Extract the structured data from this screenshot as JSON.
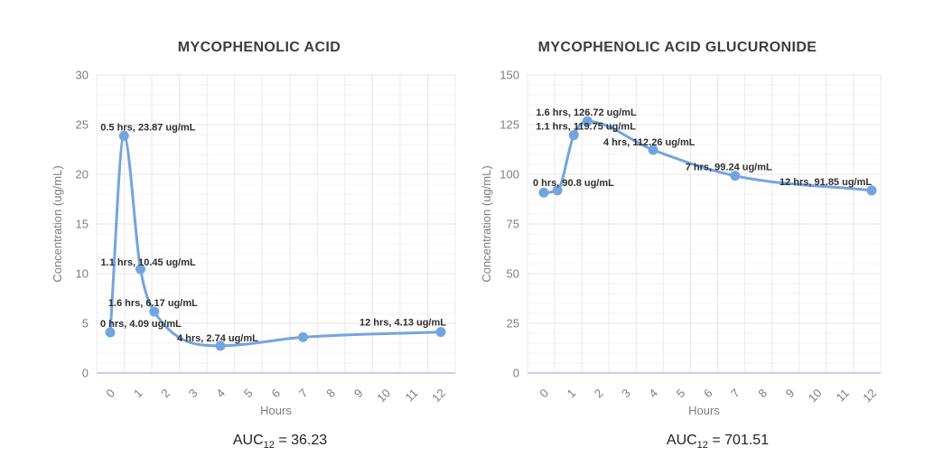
{
  "page": {
    "background": "#ffffff"
  },
  "chart_data": [
    {
      "type": "line",
      "title": "MYCOPHENOLIC ACID",
      "xlabel": "Hours",
      "ylabel": "Concentration (ug/mL)",
      "x": [
        0,
        0.5,
        1.1,
        1.6,
        4,
        7,
        12
      ],
      "y": [
        4.09,
        23.87,
        10.45,
        6.17,
        2.74,
        3.6,
        4.13
      ],
      "point_labels": [
        "0 hrs, 4.09 ug/mL",
        "0.5 hrs, 23.87 ug/mL",
        "1.1 hrs, 10.45 ug/mL",
        "1.6 hrs, 6.17 ug/mL",
        "4 hrs, 2.74 ug/mL",
        null,
        "12 hrs, 4.13 ug/mL"
      ],
      "label_offsets": [
        [
          -11,
          -6
        ],
        [
          -26,
          -6
        ],
        [
          -44,
          -4
        ],
        [
          -51,
          -6
        ],
        [
          -48,
          -5
        ],
        null,
        [
          -90,
          -7
        ]
      ],
      "xlim": [
        0,
        12
      ],
      "ylim": [
        0,
        30
      ],
      "x_ticks": [
        0,
        1,
        2,
        3,
        4,
        5,
        6,
        7,
        8,
        9,
        10,
        11,
        12
      ],
      "y_ticks": [
        0,
        5,
        10,
        15,
        20,
        25,
        30
      ],
      "y_minor_step": 1,
      "grid": true,
      "legend": "none",
      "line_color": "#74a4e0",
      "auc_prefix": "AUC",
      "auc_subscript": "12",
      "auc_value": " = 36.23"
    },
    {
      "type": "line",
      "title": "MYCOPHENOLIC ACID GLUCURONIDE",
      "xlabel": "Hours",
      "ylabel": "Concentration (ug/mL)",
      "x": [
        0,
        0.5,
        1.1,
        1.6,
        4,
        7,
        12
      ],
      "y": [
        90.8,
        91.9,
        119.75,
        126.72,
        112.26,
        99.24,
        91.85
      ],
      "point_labels": [
        "0 hrs, 90.8 ug/mL",
        null,
        "1.1 hrs, 119.75 ug/mL",
        "1.6 hrs, 126.72 ug/mL",
        "4 hrs, 112.26 ug/mL",
        "7 hrs, 99.24 ug/mL",
        "12 hrs, 91.85 ug/mL"
      ],
      "label_offsets": [
        [
          -12,
          -7
        ],
        null,
        [
          -42,
          -6
        ],
        [
          -57,
          -6
        ],
        [
          -55,
          -5
        ],
        [
          -55,
          -6
        ],
        [
          -102,
          -6
        ]
      ],
      "xlim": [
        0,
        12
      ],
      "ylim": [
        0,
        150
      ],
      "x_ticks": [
        0,
        1,
        2,
        3,
        4,
        5,
        6,
        7,
        8,
        9,
        10,
        11,
        12
      ],
      "y_ticks": [
        0,
        25,
        50,
        75,
        100,
        125,
        150
      ],
      "y_minor_step": 5,
      "grid": true,
      "legend": "none",
      "line_color": "#74a4e0",
      "auc_prefix": "AUC",
      "auc_subscript": "12",
      "auc_value": " = 701.51"
    }
  ]
}
